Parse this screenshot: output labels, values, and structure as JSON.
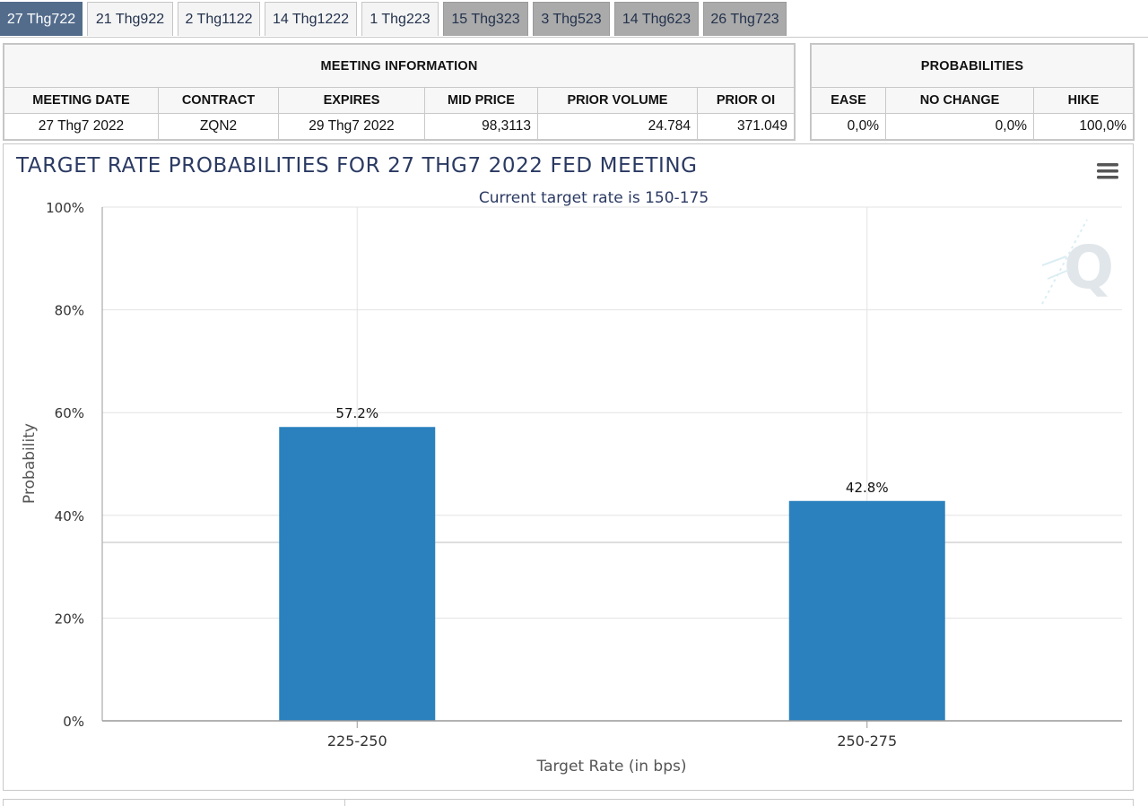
{
  "tabs": [
    {
      "label": "27 Thg722",
      "state": "active"
    },
    {
      "label": "21 Thg922",
      "state": "light"
    },
    {
      "label": "2 Thg1122",
      "state": "light"
    },
    {
      "label": "14 Thg1222",
      "state": "light"
    },
    {
      "label": "1 Thg223",
      "state": "light"
    },
    {
      "label": "15 Thg323",
      "state": "dark"
    },
    {
      "label": "3 Thg523",
      "state": "dark"
    },
    {
      "label": "14 Thg623",
      "state": "dark"
    },
    {
      "label": "26 Thg723",
      "state": "dark"
    }
  ],
  "meeting_info": {
    "title": "MEETING INFORMATION",
    "headers": [
      "MEETING DATE",
      "CONTRACT",
      "EXPIRES",
      "MID PRICE",
      "PRIOR VOLUME",
      "PRIOR OI"
    ],
    "values": [
      "27 Thg7 2022",
      "ZQN2",
      "29 Thg7 2022",
      "98,3113",
      "24.784",
      "371.049"
    ]
  },
  "probabilities": {
    "title": "PROBABILITIES",
    "headers": [
      "EASE",
      "NO CHANGE",
      "HIKE"
    ],
    "values": [
      "0,0%",
      "0,0%",
      "100,0%"
    ]
  },
  "colors": {
    "bar": "#2a81bd",
    "title": "#2b3a63",
    "active_tab": "#536c8c"
  },
  "chart_data": {
    "type": "bar",
    "title": "TARGET RATE PROBABILITIES FOR 27 THG7 2022 FED MEETING",
    "subtitle": "Current target rate is 150-175",
    "xlabel": "Target Rate (in bps)",
    "ylabel": "Probability",
    "categories": [
      "225-250",
      "250-275"
    ],
    "values": [
      57.2,
      42.8
    ],
    "data_labels": [
      "57.2%",
      "42.8%"
    ],
    "ylim": [
      0,
      100
    ],
    "yticks": [
      0,
      20,
      40,
      60,
      80,
      100
    ],
    "ytick_labels": [
      "0%",
      "20%",
      "40%",
      "60%",
      "80%",
      "100%"
    ],
    "grid": true,
    "legend": "none"
  }
}
